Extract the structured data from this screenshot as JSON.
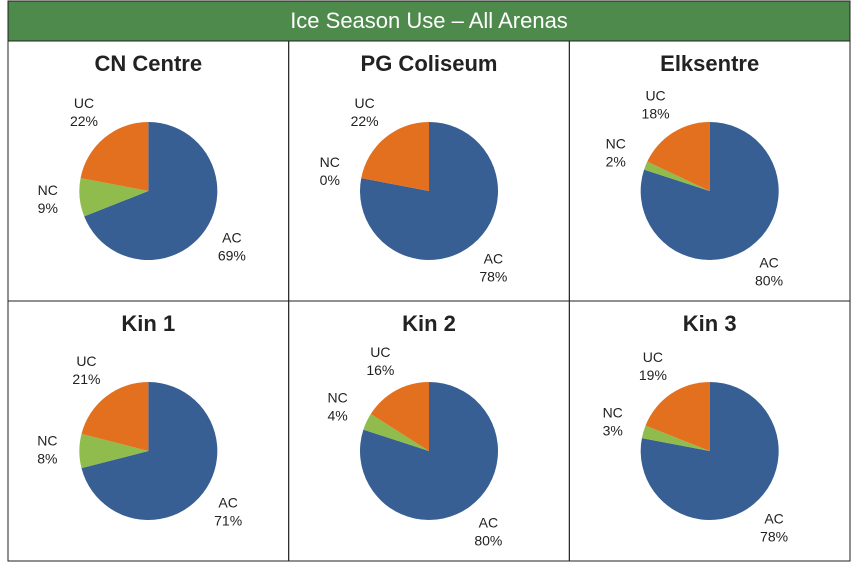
{
  "title": "Ice Season Use – All Arenas",
  "chart_data": [
    {
      "type": "pie",
      "title": "CN Centre",
      "categories": [
        "AC",
        "NC",
        "UC"
      ],
      "values": [
        69,
        9,
        22
      ],
      "value_labels": [
        "69%",
        "9%",
        "22%"
      ],
      "colors": [
        "#375f93",
        "#8fbc4c",
        "#e2701f"
      ]
    },
    {
      "type": "pie",
      "title": "PG Coliseum",
      "categories": [
        "AC",
        "NC",
        "UC"
      ],
      "values": [
        78,
        0,
        22
      ],
      "value_labels": [
        "78%",
        "0%",
        "22%"
      ],
      "colors": [
        "#375f93",
        "#8fbc4c",
        "#e2701f"
      ]
    },
    {
      "type": "pie",
      "title": "Elksentre",
      "categories": [
        "AC",
        "NC",
        "UC"
      ],
      "values": [
        80,
        2,
        18
      ],
      "value_labels": [
        "80%",
        "2%",
        "18%"
      ],
      "colors": [
        "#375f93",
        "#8fbc4c",
        "#e2701f"
      ]
    },
    {
      "type": "pie",
      "title": "Kin 1",
      "categories": [
        "AC",
        "NC",
        "UC"
      ],
      "values": [
        71,
        8,
        21
      ],
      "value_labels": [
        "71%",
        "8%",
        "21%"
      ],
      "colors": [
        "#375f93",
        "#8fbc4c",
        "#e2701f"
      ]
    },
    {
      "type": "pie",
      "title": "Kin 2",
      "categories": [
        "AC",
        "NC",
        "UC"
      ],
      "values": [
        80,
        4,
        16
      ],
      "value_labels": [
        "80%",
        "4%",
        "16%"
      ],
      "colors": [
        "#375f93",
        "#8fbc4c",
        "#e2701f"
      ]
    },
    {
      "type": "pie",
      "title": "Kin 3",
      "categories": [
        "AC",
        "NC",
        "UC"
      ],
      "values": [
        78,
        3,
        19
      ],
      "value_labels": [
        "78%",
        "3%",
        "19%"
      ],
      "colors": [
        "#375f93",
        "#8fbc4c",
        "#e2701f"
      ]
    }
  ]
}
